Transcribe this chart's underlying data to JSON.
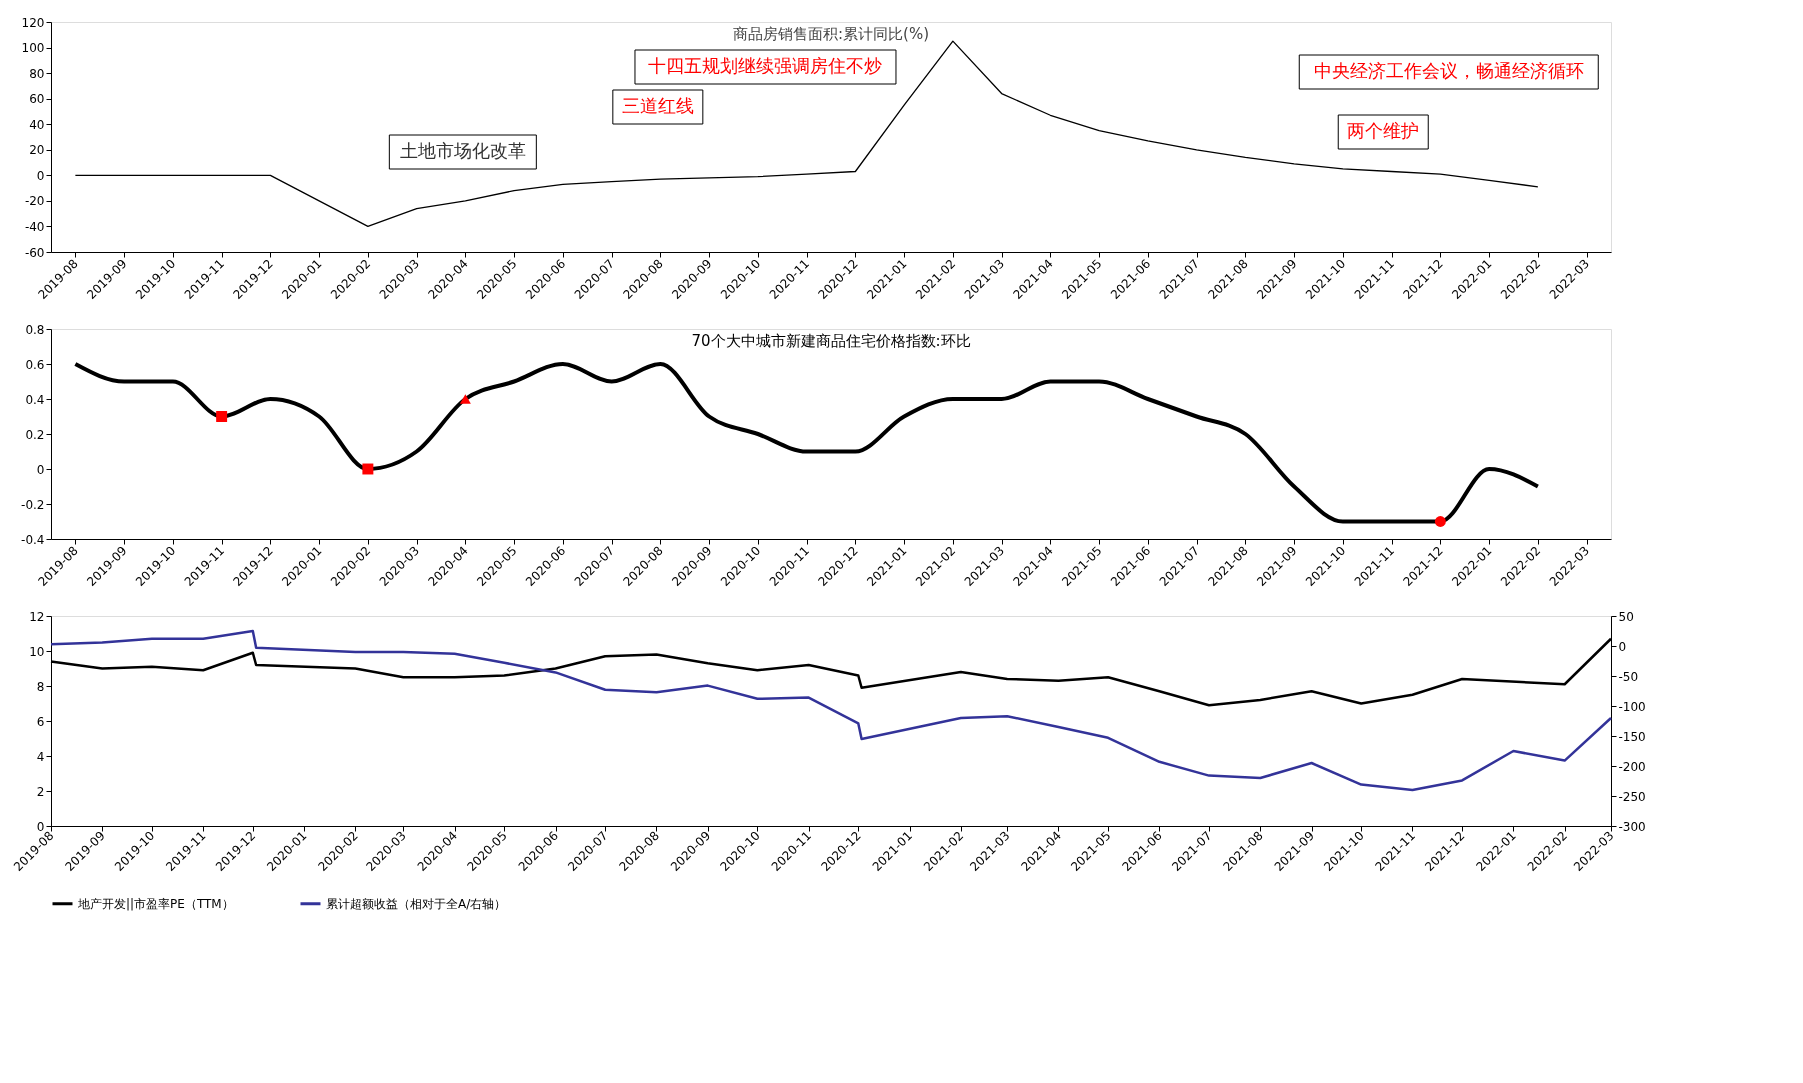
{
  "chart_data": [
    {
      "type": "line",
      "title": "商品房销售面积:累计同比(%)",
      "marker": "none",
      "grid": false,
      "legend": false,
      "categories": [
        "2019-08",
        "2019-09",
        "2019-10",
        "2019-11",
        "2019-12",
        "2020-01",
        "2020-02",
        "2020-03",
        "2020-04",
        "2020-05",
        "2020-06",
        "2020-07",
        "2020-08",
        "2020-09",
        "2020-10",
        "2020-11",
        "2020-12",
        "2021-01",
        "2021-02",
        "2021-03",
        "2021-04",
        "2021-05",
        "2021-06",
        "2021-07",
        "2021-08",
        "2021-09",
        "2021-10",
        "2021-11",
        "2021-12",
        "2022-01",
        "2022-02",
        "2022-03"
      ],
      "series": [
        {
          "color": "#000000",
          "values": [
            0,
            0,
            0,
            0,
            0,
            -20,
            -40,
            -26,
            -20,
            -12,
            -7,
            -5,
            -3,
            -2,
            -1,
            1,
            3,
            55,
            105,
            64,
            47,
            35,
            27,
            20,
            14,
            9,
            5,
            3,
            1,
            -4,
            -9,
            null
          ]
        }
      ],
      "ylim": [
        -60,
        120
      ],
      "yticks": [
        -60,
        -40,
        -20,
        0,
        20,
        40,
        60,
        80,
        100,
        120
      ],
      "annotations": [
        "土地市场化改革",
        "三道红线",
        "十四五规划继续强调房住不炒",
        "中央经济工作会议，畅通经济循环",
        "两个维护"
      ]
    },
    {
      "type": "line",
      "title": "70个大中城市新建商品住宅价格指数:环比",
      "marker": "none",
      "grid": false,
      "legend": false,
      "line_style": "solid",
      "categories": [
        "2019-08",
        "2019-09",
        "2019-10",
        "2019-11",
        "2019-12",
        "2020-01",
        "2020-02",
        "2020-03",
        "2020-04",
        "2020-05",
        "2020-06",
        "2020-07",
        "2020-08",
        "2020-09",
        "2020-10",
        "2020-11",
        "2020-12",
        "2021-01",
        "2021-02",
        "2021-03",
        "2021-04",
        "2021-05",
        "2021-06",
        "2021-07",
        "2021-08",
        "2021-09",
        "2021-10",
        "2021-11",
        "2021-12",
        "2022-01",
        "2022-02",
        "2022-03"
      ],
      "series": [
        {
          "color": "#000000",
          "values": [
            0.6,
            0.5,
            0.5,
            0.3,
            0.4,
            0.3,
            0.0,
            0.1,
            0.4,
            0.5,
            0.6,
            0.5,
            0.6,
            0.3,
            0.2,
            0.1,
            0.1,
            0.3,
            0.4,
            0.4,
            0.5,
            0.5,
            0.4,
            0.3,
            0.2,
            -0.1,
            -0.3,
            -0.3,
            -0.3,
            0.0,
            -0.1,
            null
          ]
        },
        {
          "type": "scatter",
          "marker": "square",
          "color": "#ff0000",
          "values": [
            null,
            null,
            null,
            0.3,
            null,
            null,
            0.0,
            null,
            null,
            null,
            null,
            null,
            null,
            null,
            null,
            null,
            null,
            null,
            null,
            null,
            null,
            null,
            null,
            null,
            null,
            null,
            null,
            null,
            null,
            null,
            null,
            null
          ]
        },
        {
          "type": "scatter",
          "marker": "triangle",
          "color": "#ff0000",
          "values": [
            null,
            null,
            null,
            null,
            null,
            null,
            null,
            null,
            0.4,
            null,
            null,
            null,
            null,
            null,
            null,
            null,
            null,
            null,
            null,
            null,
            null,
            null,
            null,
            null,
            null,
            null,
            null,
            null,
            null,
            null,
            null,
            null
          ]
        },
        {
          "type": "scatter",
          "marker": "circle",
          "color": "#ff0000",
          "values": [
            null,
            null,
            null,
            null,
            null,
            null,
            null,
            null,
            null,
            null,
            null,
            null,
            null,
            null,
            null,
            null,
            null,
            null,
            null,
            null,
            null,
            null,
            null,
            null,
            null,
            null,
            null,
            null,
            -0.3,
            null,
            null,
            null
          ]
        }
      ],
      "ylim": [
        -0.4,
        0.8
      ],
      "yticks": [
        -0.4,
        -0.2,
        0,
        0.2,
        0.4,
        0.6,
        0.8
      ]
    },
    {
      "type": "line",
      "marker": "none",
      "grid": false,
      "legend": "bottom",
      "series": [
        {
          "name": "地产开发||市盈率PE（TTM）",
          "color": "#000000",
          "x": [
            "2019-08-01",
            "2019-09-01",
            "2019-10-01",
            "2019-11-01",
            "2019-12-01",
            "2019-12-03",
            "2020-02-01",
            "2020-03-01",
            "2020-04-01",
            "2020-05-01",
            "2020-06-01",
            "2020-07-01",
            "2020-08-01",
            "2020-09-01",
            "2020-10-01",
            "2020-11-01",
            "2020-12-01",
            "2020-12-03",
            "2021-02-01",
            "2021-03-01",
            "2021-04-01",
            "2021-05-01",
            "2021-06-01",
            "2021-07-01",
            "2021-08-01",
            "2021-09-01",
            "2021-10-01",
            "2021-11-01",
            "2021-12-01",
            "2022-02-01",
            "2022-03-01"
          ],
          "values": [
            9.4,
            9.0,
            9.1,
            8.9,
            9.9,
            9.2,
            9.0,
            8.5,
            8.5,
            8.6,
            9.0,
            9.7,
            9.8,
            9.3,
            8.9,
            9.2,
            8.6,
            7.9,
            8.8,
            8.4,
            8.3,
            8.5,
            7.7,
            6.9,
            7.2,
            7.7,
            7.0,
            7.5,
            8.4,
            8.1,
            10.7
          ]
        },
        {
          "name": "累计超额收益（相对于全A/右轴）",
          "color": "#333399",
          "axis": "y2",
          "x": [
            "2019-08-01",
            "2019-09-01",
            "2019-10-01",
            "2019-11-01",
            "2019-12-01",
            "2019-12-03",
            "2020-02-01",
            "2020-03-01",
            "2020-04-01",
            "2020-05-01",
            "2020-06-01",
            "2020-07-01",
            "2020-08-01",
            "2020-09-01",
            "2020-10-01",
            "2020-11-01",
            "2020-12-01",
            "2020-12-03",
            "2021-02-01",
            "2021-03-01",
            "2021-04-01",
            "2021-05-01",
            "2021-06-01",
            "2021-07-01",
            "2021-08-01",
            "2021-09-01",
            "2021-10-01",
            "2021-11-01",
            "2021-12-01",
            "2022-01-01",
            "2022-02-01",
            "2022-03-01"
          ],
          "values": [
            3,
            6,
            12,
            12,
            25,
            -3,
            -10,
            -10,
            -13,
            -28,
            -44,
            -73,
            -77,
            -66,
            -88,
            -86,
            -129,
            -155,
            -120,
            -117,
            -135,
            -153,
            -193,
            -216,
            -220,
            -195,
            -231,
            -240,
            -224,
            -175,
            -191,
            -120
          ]
        }
      ],
      "xlim": [
        "2019-08-01",
        "2022-03-01"
      ],
      "xticks": [
        {
          "value": "2019-08-01",
          "label": "2019-08"
        },
        {
          "value": "2019-09-01",
          "label": "2019-09"
        },
        {
          "value": "2019-10-01",
          "label": "2019-10"
        },
        {
          "value": "2019-11-01",
          "label": "2019-11"
        },
        {
          "value": "2019-12-01",
          "label": "2019-12"
        },
        {
          "value": "2020-01-01",
          "label": "2020-01"
        },
        {
          "value": "2020-02-01",
          "label": "2020-02"
        },
        {
          "value": "2020-03-01",
          "label": "2020-03"
        },
        {
          "value": "2020-04-01",
          "label": "2020-04"
        },
        {
          "value": "2020-05-01",
          "label": "2020-05"
        },
        {
          "value": "2020-06-01",
          "label": "2020-06"
        },
        {
          "value": "2020-07-01",
          "label": "2020-07"
        },
        {
          "value": "2020-08-01",
          "label": "2020-08"
        },
        {
          "value": "2020-09-01",
          "label": "2020-09"
        },
        {
          "value": "2020-10-01",
          "label": "2020-10"
        },
        {
          "value": "2020-11-01",
          "label": "2020-11"
        },
        {
          "value": "2020-12-01",
          "label": "2020-12"
        },
        {
          "value": "2021-01-01",
          "label": "2021-01"
        },
        {
          "value": "2021-02-01",
          "label": "2021-02"
        },
        {
          "value": "2021-03-01",
          "label": "2021-03"
        },
        {
          "value": "2021-04-01",
          "label": "2021-04"
        },
        {
          "value": "2021-05-01",
          "label": "2021-05"
        },
        {
          "value": "2021-06-01",
          "label": "2021-06"
        },
        {
          "value": "2021-07-01",
          "label": "2021-07"
        },
        {
          "value": "2021-08-01",
          "label": "2021-08"
        },
        {
          "value": "2021-09-01",
          "label": "2021-09"
        },
        {
          "value": "2021-10-01",
          "label": "2021-10"
        },
        {
          "value": "2021-11-01",
          "label": "2021-11"
        },
        {
          "value": "2021-12-01",
          "label": "2021-12"
        },
        {
          "value": "2022-01-01",
          "label": "2022-01"
        },
        {
          "value": "2022-02-01",
          "label": "2022-02"
        },
        {
          "value": "2022-03-01",
          "label": "2022-03"
        }
      ],
      "ylim": [
        0,
        12
      ],
      "yticks": [
        0,
        2,
        4,
        6,
        8,
        10,
        12
      ],
      "y2lim": [
        -300,
        50
      ],
      "y2ticks": [
        -300,
        -250,
        -200,
        -150,
        -100,
        -50,
        0,
        50
      ]
    }
  ]
}
